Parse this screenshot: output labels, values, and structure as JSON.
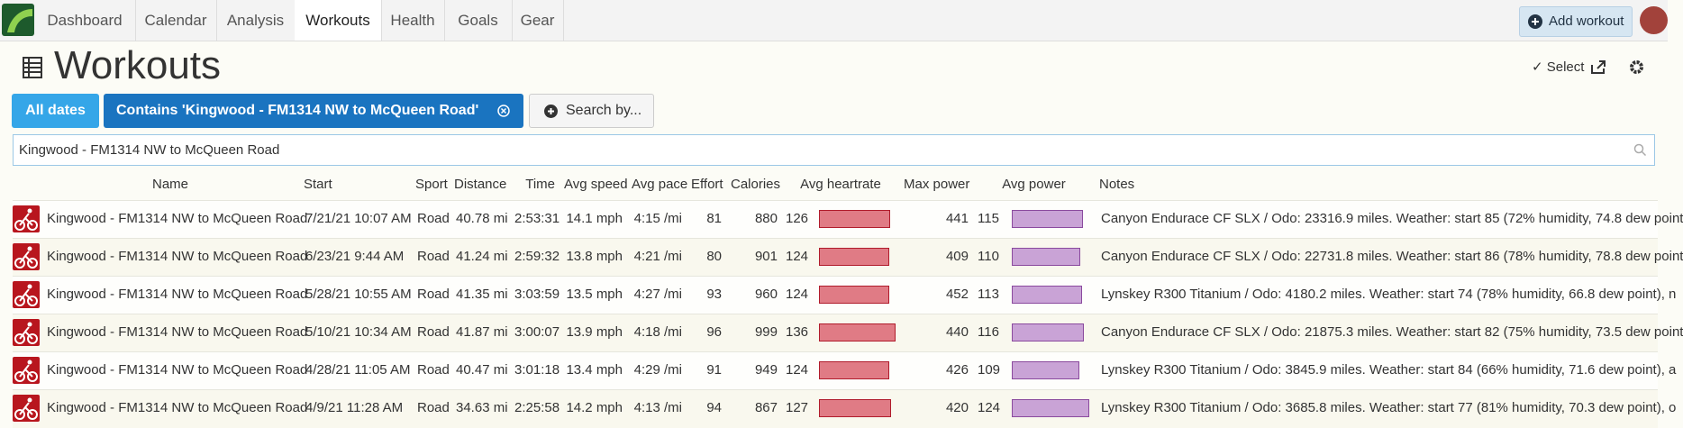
{
  "nav": {
    "tabs": [
      "Dashboard",
      "Calendar",
      "Analysis",
      "Workouts",
      "Health",
      "Goals",
      "Gear"
    ],
    "add_button": "Add workout"
  },
  "header": {
    "title": "Workouts",
    "select": "Select"
  },
  "filters": {
    "dates": "All dates",
    "contains": "Contains 'Kingwood - FM1314 NW to McQueen Road'",
    "search_by": "Search by..."
  },
  "search": {
    "value": "Kingwood - FM1314 NW to McQueen Road"
  },
  "table": {
    "columns": [
      "Name",
      "Start",
      "Sport",
      "Distance",
      "Time",
      "Avg speed",
      "Avg pace",
      "Effort",
      "Calories",
      "Avg heartrate",
      "Max power",
      "Avg power",
      "Notes"
    ],
    "rows": [
      {
        "name": "Kingwood - FM1314 NW to McQueen Road",
        "start": "7/21/21 10:07 AM",
        "sport": "Road",
        "distance": "40.78 mi",
        "time": "2:53:31",
        "avg_speed": "14.1 mph",
        "avg_pace": "4:15 /mi",
        "effort": 81,
        "calories": 880,
        "avg_heartrate": 126,
        "max_power": 441,
        "avg_power": 115,
        "notes": "Canyon Endurace CF SLX / Odo: 23316.9 miles. Weather: start 85 (72% humidity, 74.8 dew point"
      },
      {
        "name": "Kingwood - FM1314 NW to McQueen Road",
        "start": "6/23/21 9:44 AM",
        "sport": "Road",
        "distance": "41.24 mi",
        "time": "2:59:32",
        "avg_speed": "13.8 mph",
        "avg_pace": "4:21 /mi",
        "effort": 80,
        "calories": 901,
        "avg_heartrate": 124,
        "max_power": 409,
        "avg_power": 110,
        "notes": "Canyon Endurace CF SLX / Odo: 22731.8 miles. Weather: start 86 (78% humidity, 78.8 dew point"
      },
      {
        "name": "Kingwood - FM1314 NW to McQueen Road",
        "start": "5/28/21 10:55 AM",
        "sport": "Road",
        "distance": "41.35 mi",
        "time": "3:03:59",
        "avg_speed": "13.5 mph",
        "avg_pace": "4:27 /mi",
        "effort": 93,
        "calories": 960,
        "avg_heartrate": 124,
        "max_power": 452,
        "avg_power": 113,
        "notes": "Lynskey R300 Titanium / Odo: 4180.2 miles. Weather: start 74 (78% humidity, 66.8 dew point), n"
      },
      {
        "name": "Kingwood - FM1314 NW to McQueen Road",
        "start": "5/10/21 10:34 AM",
        "sport": "Road",
        "distance": "41.87 mi",
        "time": "3:00:07",
        "avg_speed": "13.9 mph",
        "avg_pace": "4:18 /mi",
        "effort": 96,
        "calories": 999,
        "avg_heartrate": 136,
        "max_power": 440,
        "avg_power": 116,
        "notes": "Canyon Endurace CF SLX / Odo: 21875.3 miles. Weather: start 82 (75% humidity, 73.5 dew point"
      },
      {
        "name": "Kingwood - FM1314 NW to McQueen Road",
        "start": "4/28/21 11:05 AM",
        "sport": "Road",
        "distance": "40.47 mi",
        "time": "3:01:18",
        "avg_speed": "13.4 mph",
        "avg_pace": "4:29 /mi",
        "effort": 91,
        "calories": 949,
        "avg_heartrate": 124,
        "max_power": 426,
        "avg_power": 109,
        "notes": "Lynskey R300 Titanium / Odo: 3845.9 miles. Weather: start 84 (66% humidity, 71.6 dew point), a"
      },
      {
        "name": "Kingwood - FM1314 NW to McQueen Road",
        "start": "4/9/21 11:28 AM",
        "sport": "Road",
        "distance": "34.63 mi",
        "time": "2:25:58",
        "avg_speed": "14.2 mph",
        "avg_pace": "4:13 /mi",
        "effort": 94,
        "calories": 867,
        "avg_heartrate": 127,
        "max_power": 420,
        "avg_power": 124,
        "notes": "Lynskey R300 Titanium / Odo: 3685.8 miles. Weather: start 77 (81% humidity, 70.3 dew point), o"
      }
    ]
  }
}
